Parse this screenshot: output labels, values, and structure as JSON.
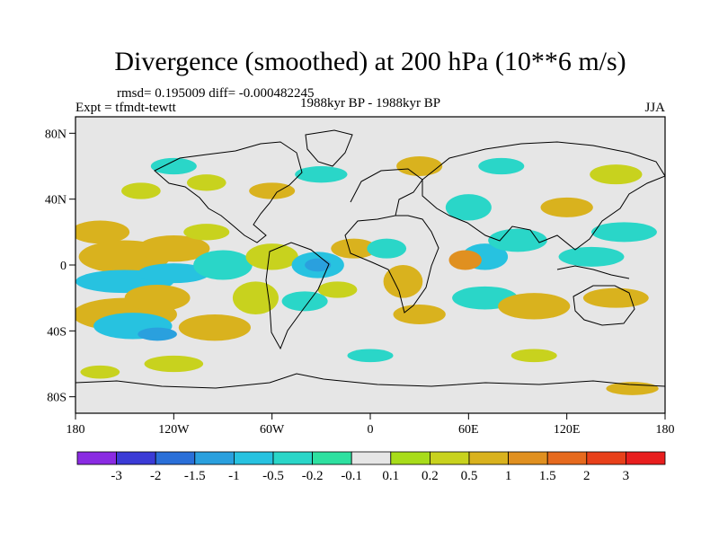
{
  "chart_data": {
    "type": "heatmap",
    "title": "Divergence (smoothed) at 200 hPa (10**6 m/s)",
    "stats_line": "rmsd= 0.195009 diff= -0.000482245",
    "left_subtitle": "Expt = tfmdt-tewtt",
    "center_subtitle": "1988kyr BP - 1988kyr BP",
    "right_subtitle": "JJA",
    "x_axis": {
      "range": [
        -180,
        180
      ],
      "ticks": [
        -180,
        -120,
        -60,
        0,
        60,
        120,
        180
      ],
      "tick_labels": [
        "180",
        "120W",
        "60W",
        "0",
        "60E",
        "120E",
        "180"
      ]
    },
    "y_axis": {
      "range": [
        -90,
        90
      ],
      "ticks": [
        80,
        40,
        0,
        -40,
        -80
      ],
      "tick_labels": [
        "80N",
        "40N",
        "0",
        "40S",
        "80S"
      ]
    },
    "colorbar": {
      "levels": [
        -3,
        -2,
        -1.5,
        -1,
        -0.5,
        -0.2,
        -0.1,
        0.1,
        0.2,
        0.5,
        1,
        1.5,
        2,
        3
      ],
      "labels": [
        "-3",
        "-2",
        "-1.5",
        "-1",
        "-0.5",
        "-0.2",
        "-0.1",
        "0.1",
        "0.2",
        "0.5",
        "1",
        "1.5",
        "2",
        "3"
      ],
      "colors": [
        "#8a2be2",
        "#3b3bd6",
        "#2a6fd8",
        "#2aa0de",
        "#27c2e0",
        "#2ad6c8",
        "#2ee0a0",
        "#e6e6e6",
        "#a8dc1a",
        "#c8d21e",
        "#d9b21e",
        "#e09020",
        "#e66a1e",
        "#e8401a",
        "#e81e1e"
      ]
    },
    "field_blobs": [
      {
        "lon": -165,
        "lat": 20,
        "rlon": 18,
        "rlat": 7,
        "value": 0.6
      },
      {
        "lon": -150,
        "lat": 5,
        "rlon": 28,
        "rlat": 10,
        "value": 0.7
      },
      {
        "lon": -120,
        "lat": 10,
        "rlon": 22,
        "rlat": 8,
        "value": 0.9
      },
      {
        "lon": -100,
        "lat": 20,
        "rlon": 14,
        "rlat": 5,
        "value": 0.25
      },
      {
        "lon": -150,
        "lat": -10,
        "rlon": 30,
        "rlat": 7,
        "value": -0.8
      },
      {
        "lon": -120,
        "lat": -5,
        "rlon": 22,
        "rlat": 6,
        "value": -0.7
      },
      {
        "lon": -90,
        "lat": 0,
        "rlon": 18,
        "rlat": 9,
        "value": -0.4
      },
      {
        "lon": -150,
        "lat": -30,
        "rlon": 32,
        "rlat": 10,
        "value": 0.5
      },
      {
        "lon": -130,
        "lat": -20,
        "rlon": 20,
        "rlat": 8,
        "value": 0.9
      },
      {
        "lon": -145,
        "lat": -37,
        "rlon": 24,
        "rlat": 8,
        "value": -0.9
      },
      {
        "lon": -130,
        "lat": -42,
        "rlon": 12,
        "rlat": 4,
        "value": -1.3
      },
      {
        "lon": -95,
        "lat": -38,
        "rlon": 22,
        "rlat": 8,
        "value": 0.5
      },
      {
        "lon": -70,
        "lat": -20,
        "rlon": 14,
        "rlat": 10,
        "value": 0.4
      },
      {
        "lon": -60,
        "lat": 5,
        "rlon": 16,
        "rlat": 8,
        "value": 0.4
      },
      {
        "lon": -32,
        "lat": 0,
        "rlon": 16,
        "rlat": 8,
        "value": -0.7
      },
      {
        "lon": -32,
        "lat": 0,
        "rlon": 8,
        "rlat": 4,
        "value": -1.2
      },
      {
        "lon": -10,
        "lat": 10,
        "rlon": 14,
        "rlat": 6,
        "value": 0.5
      },
      {
        "lon": -40,
        "lat": -22,
        "rlon": 14,
        "rlat": 6,
        "value": -0.4
      },
      {
        "lon": -20,
        "lat": -15,
        "rlon": 12,
        "rlat": 5,
        "value": 0.3
      },
      {
        "lon": 20,
        "lat": -10,
        "rlon": 12,
        "rlat": 10,
        "value": 0.5
      },
      {
        "lon": 10,
        "lat": 10,
        "rlon": 12,
        "rlat": 6,
        "value": -0.4
      },
      {
        "lon": 30,
        "lat": -30,
        "rlon": 16,
        "rlat": 6,
        "value": 0.6
      },
      {
        "lon": 70,
        "lat": 5,
        "rlon": 14,
        "rlat": 8,
        "value": -0.8
      },
      {
        "lon": 58,
        "lat": 3,
        "rlon": 10,
        "rlat": 6,
        "value": 1.1
      },
      {
        "lon": 90,
        "lat": 15,
        "rlon": 18,
        "rlat": 7,
        "value": -0.5
      },
      {
        "lon": 70,
        "lat": -20,
        "rlon": 20,
        "rlat": 7,
        "value": -0.5
      },
      {
        "lon": 100,
        "lat": -25,
        "rlon": 22,
        "rlat": 8,
        "value": 0.7
      },
      {
        "lon": 150,
        "lat": -20,
        "rlon": 20,
        "rlat": 6,
        "value": 0.6
      },
      {
        "lon": 135,
        "lat": 5,
        "rlon": 20,
        "rlat": 6,
        "value": -0.5
      },
      {
        "lon": 155,
        "lat": 20,
        "rlon": 20,
        "rlat": 6,
        "value": -0.4
      },
      {
        "lon": 120,
        "lat": 35,
        "rlon": 16,
        "rlat": 6,
        "value": 0.5
      },
      {
        "lon": 150,
        "lat": 55,
        "rlon": 16,
        "rlat": 6,
        "value": 0.4
      },
      {
        "lon": 60,
        "lat": 35,
        "rlon": 14,
        "rlat": 8,
        "value": -0.3
      },
      {
        "lon": 30,
        "lat": 60,
        "rlon": 14,
        "rlat": 6,
        "value": 0.5
      },
      {
        "lon": 80,
        "lat": 60,
        "rlon": 14,
        "rlat": 5,
        "value": -0.3
      },
      {
        "lon": -60,
        "lat": 45,
        "rlon": 14,
        "rlat": 5,
        "value": 0.5
      },
      {
        "lon": -30,
        "lat": 55,
        "rlon": 16,
        "rlat": 5,
        "value": -0.4
      },
      {
        "lon": -100,
        "lat": 50,
        "rlon": 12,
        "rlat": 5,
        "value": 0.3
      },
      {
        "lon": -120,
        "lat": 60,
        "rlon": 14,
        "rlat": 5,
        "value": -0.3
      },
      {
        "lon": -140,
        "lat": 45,
        "rlon": 12,
        "rlat": 5,
        "value": 0.4
      },
      {
        "lon": -120,
        "lat": -60,
        "rlon": 18,
        "rlat": 5,
        "value": 0.4
      },
      {
        "lon": 160,
        "lat": -75,
        "rlon": 16,
        "rlat": 4,
        "value": 0.5
      },
      {
        "lon": -165,
        "lat": -65,
        "rlon": 12,
        "rlat": 4,
        "value": 0.3
      },
      {
        "lon": 0,
        "lat": -55,
        "rlon": 14,
        "rlat": 4,
        "value": -0.3
      },
      {
        "lon": 100,
        "lat": -55,
        "rlon": 14,
        "rlat": 4,
        "value": 0.3
      }
    ],
    "grid": false
  }
}
